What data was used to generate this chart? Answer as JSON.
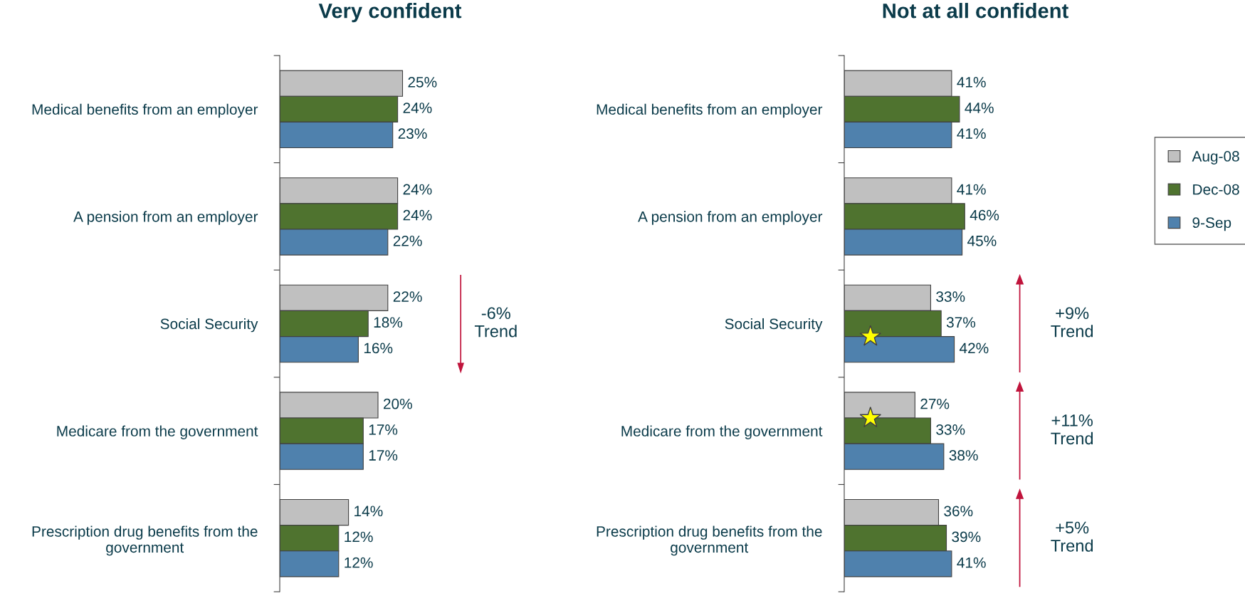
{
  "chart_data": [
    {
      "type": "bar",
      "orientation": "horizontal",
      "title": "Very confident",
      "categories": [
        "Medical benefits from an employer",
        "A pension from an employer",
        "Social Security",
        "Medicare from the government",
        "Prescription drug benefits from the government"
      ],
      "series": [
        {
          "name": "Aug-08",
          "color": "#c0c0c0",
          "values": [
            25,
            24,
            22,
            20,
            14
          ],
          "value_labels": [
            "25%",
            "24%",
            "22%",
            "20%",
            "14%"
          ]
        },
        {
          "name": "Dec-08",
          "color": "#4f732f",
          "values": [
            24,
            24,
            18,
            17,
            12
          ],
          "value_labels": [
            "24%",
            "24%",
            "18%",
            "17%",
            "12%"
          ]
        },
        {
          "name": "9-Sep",
          "color": "#4f81ad",
          "values": [
            23,
            22,
            16,
            17,
            12
          ],
          "value_labels": [
            "23%",
            "22%",
            "16%",
            "17%",
            "12%"
          ]
        }
      ],
      "tick_labels": "y",
      "legend": "right",
      "annotations": [
        "-6%\nTrend"
      ]
    },
    {
      "type": "bar",
      "orientation": "horizontal",
      "title": "Not at all confident",
      "categories": [
        "Medical benefits from an employer",
        "A pension from an employer",
        "Social Security",
        "Medicare from the government",
        "Prescription drug benefits from the government"
      ],
      "series": [
        {
          "color": "#c0c0c0",
          "values": [
            41,
            41,
            33,
            27,
            36
          ],
          "value_labels": [
            "41%",
            "41%",
            "33%",
            "27%",
            "36%"
          ]
        },
        {
          "color": "#4f732f",
          "values": [
            44,
            46,
            37,
            33,
            39
          ],
          "value_labels": [
            "44%",
            "46%",
            "37%",
            "33%",
            "39%"
          ]
        },
        {
          "color": "#4f81ad",
          "values": [
            41,
            45,
            42,
            38,
            41
          ],
          "value_labels": [
            "41%",
            "45%",
            "42%",
            "38%",
            "41%"
          ]
        }
      ],
      "tick_labels": "y",
      "annotations": [
        "+9%\nTrend",
        "+11%\nTrend",
        "+5%\nTrend"
      ]
    }
  ]
}
